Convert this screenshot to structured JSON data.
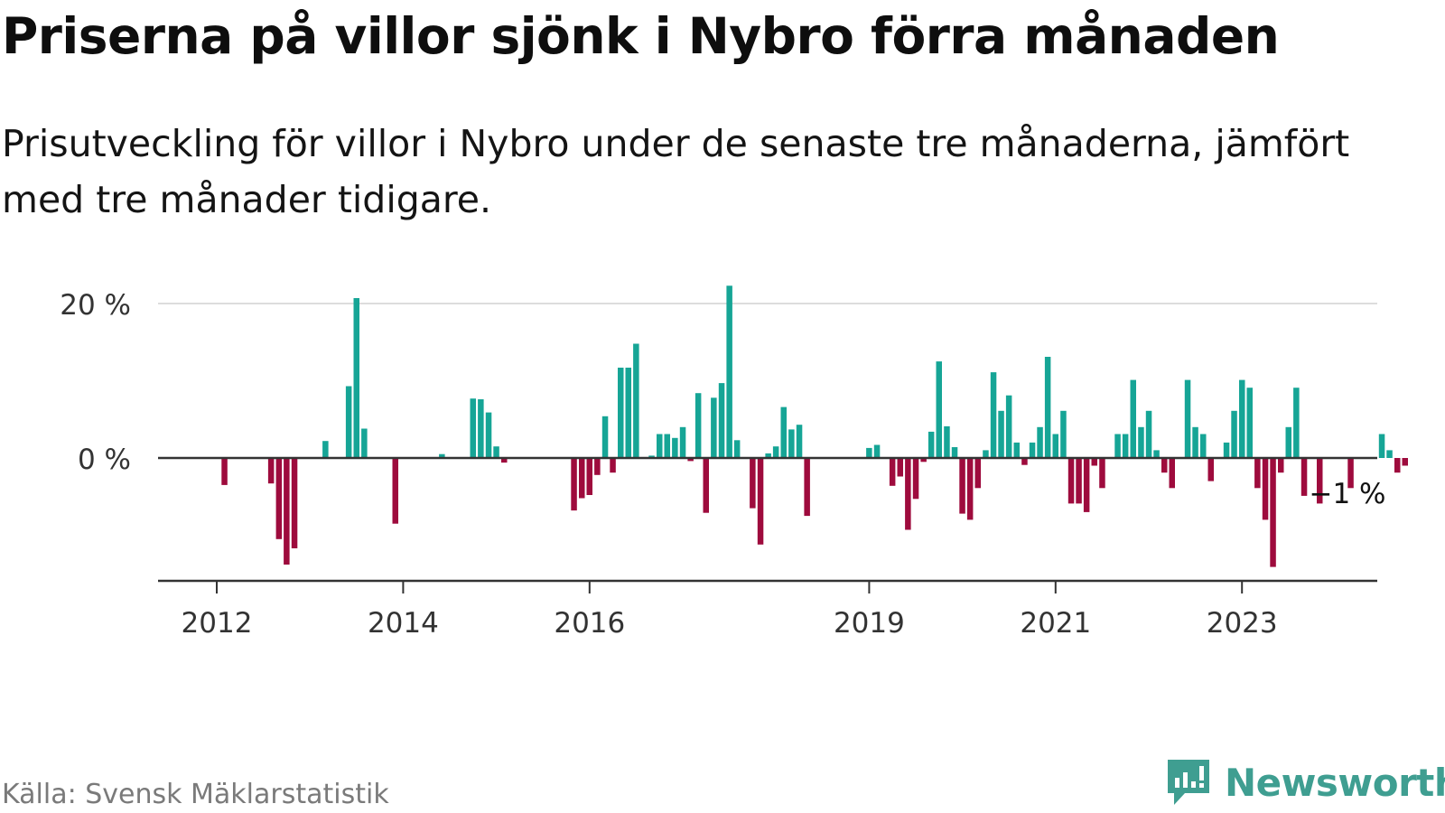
{
  "title": "Priserna på villor sjönk i Nybro förra månaden",
  "subtitle": "Prisutveckling för villor i Nybro under de senaste tre månaderna, jämfört med tre månader tidigare.",
  "source": "Källa: Svensk Mäklarstatistik",
  "brand": "Newsworthy",
  "colors": {
    "positive": "#16a596",
    "negative": "#9e0b3d",
    "brand": "#3f9e91",
    "grid": "#dddddd",
    "axis": "#333333"
  },
  "chart_data": {
    "type": "bar",
    "title": "Priserna på villor sjönk i Nybro förra månaden",
    "xlabel": "",
    "ylabel": "",
    "ylim": [
      -16,
      22
    ],
    "y_ticks": [
      {
        "value": 0,
        "label": "0 %"
      },
      {
        "value": 20,
        "label": "20 %"
      }
    ],
    "x_ticks": [
      {
        "index": 0,
        "label": "2012"
      },
      {
        "index": 24,
        "label": "2014"
      },
      {
        "index": 48,
        "label": "2016"
      },
      {
        "index": 84,
        "label": "2019"
      },
      {
        "index": 108,
        "label": "2021"
      },
      {
        "index": 132,
        "label": "2023"
      }
    ],
    "first_period": "2012-01",
    "values": [
      0,
      -3.5,
      0,
      0,
      0,
      0,
      0,
      -3.3,
      -10.5,
      -13.8,
      -11.7,
      0,
      0,
      0,
      2.2,
      0,
      0,
      9.3,
      20.7,
      3.8,
      0,
      0,
      0,
      -8.5,
      0,
      0,
      0,
      0,
      0,
      0.5,
      0,
      0,
      0,
      7.7,
      7.6,
      5.9,
      1.5,
      -0.6,
      0,
      0,
      0,
      0,
      0,
      0,
      0,
      0,
      -6.8,
      -5.2,
      -4.8,
      -2.2,
      5.4,
      -1.9,
      11.7,
      11.7,
      14.8,
      0,
      0.3,
      3.1,
      3.1,
      2.6,
      4.0,
      -0.4,
      8.4,
      -7.1,
      7.8,
      9.7,
      22.3,
      2.3,
      0,
      -6.5,
      -11.2,
      0.6,
      1.5,
      6.6,
      3.7,
      4.3,
      -7.5,
      0,
      0,
      0,
      0,
      0,
      0,
      0,
      1.3,
      1.7,
      0,
      -3.6,
      -2.4,
      -9.3,
      -5.3,
      -0.5,
      3.4,
      12.5,
      4.1,
      1.4,
      -7.2,
      -8.0,
      -3.9,
      1.0,
      11.1,
      6.1,
      8.1,
      2.0,
      -0.9,
      2.0,
      4.0,
      13.1,
      3.1,
      6.1,
      -5.9,
      -5.9,
      -7.0,
      -1.0,
      -3.9,
      0,
      3.1,
      3.1,
      10.1,
      4.0,
      6.1,
      1.0,
      -1.9,
      -3.9,
      0,
      10.1,
      4.0,
      3.1,
      -3.0,
      0,
      2.0,
      6.1,
      10.1,
      9.1,
      -3.9,
      -8.0,
      -14.1,
      -1.9,
      4.0,
      9.1,
      -4.9,
      0,
      -5.9,
      0,
      0,
      0,
      -3.9,
      0,
      0,
      0,
      3.1,
      1.0,
      -1.9,
      -1.0
    ],
    "last_value_label": "−1 %"
  }
}
